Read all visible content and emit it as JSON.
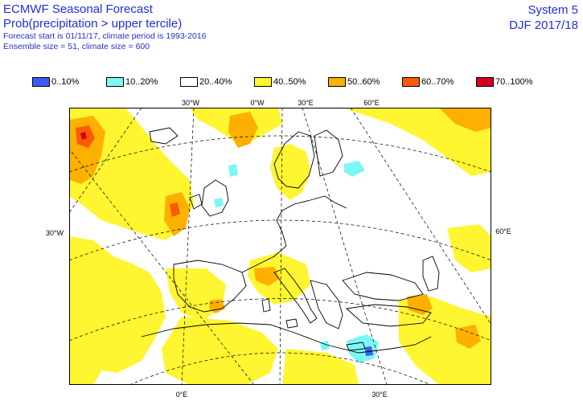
{
  "header": {
    "title": "ECMWF Seasonal Forecast",
    "subtitle": "Prob(precipitation > upper tercile)",
    "line3": "Forecast start is 01/11/17, climate period is 1993-2016",
    "line4": "Ensemble size = 51, climate size = 600",
    "system": "System 5",
    "season": "DJF 2017/18"
  },
  "legend": [
    {
      "label": "0..10%",
      "color": "#3a5cf5"
    },
    {
      "label": "10..20%",
      "color": "#7df7f5"
    },
    {
      "label": "20..40%",
      "color": "#ffffff"
    },
    {
      "label": "40..50%",
      "color": "#fff530"
    },
    {
      "label": "50..60%",
      "color": "#fdb000"
    },
    {
      "label": "60..70%",
      "color": "#fb5a00"
    },
    {
      "label": "70..100%",
      "color": "#d60020"
    }
  ],
  "graticule_labels": {
    "top": [
      "30°W",
      "0°W",
      "30°E",
      "60°E"
    ],
    "left": "30°W",
    "right": "60°E",
    "bottom": [
      "0°E",
      "30°E"
    ]
  }
}
